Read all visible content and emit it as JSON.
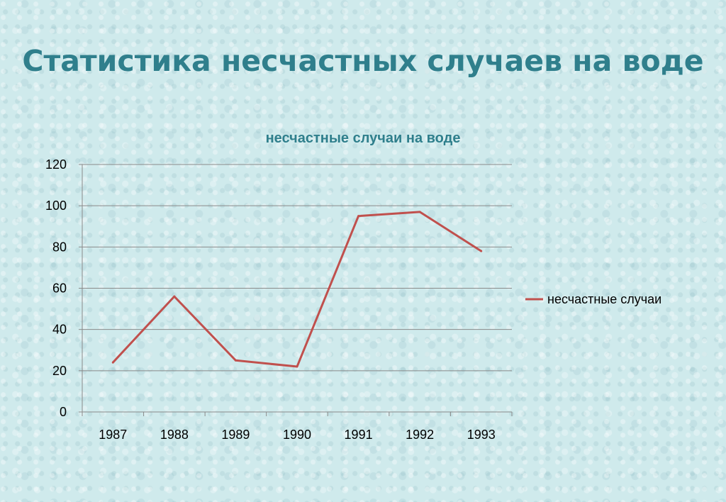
{
  "slide": {
    "title": "Статистика несчастных случаев на воде"
  },
  "chart_data": {
    "type": "line",
    "title": "несчастные случаи на воде",
    "categories": [
      "1987",
      "1988",
      "1989",
      "1990",
      "1991",
      "1992",
      "1993"
    ],
    "series": [
      {
        "name": "несчастные случаи",
        "values": [
          24,
          56,
          25,
          22,
          95,
          97,
          78
        ],
        "color": "#c0504d"
      }
    ],
    "ylim": [
      0,
      120
    ],
    "yticks": [
      0,
      20,
      40,
      60,
      80,
      100,
      120
    ],
    "grid": true,
    "legend": "right",
    "xlabel": "",
    "ylabel": ""
  }
}
